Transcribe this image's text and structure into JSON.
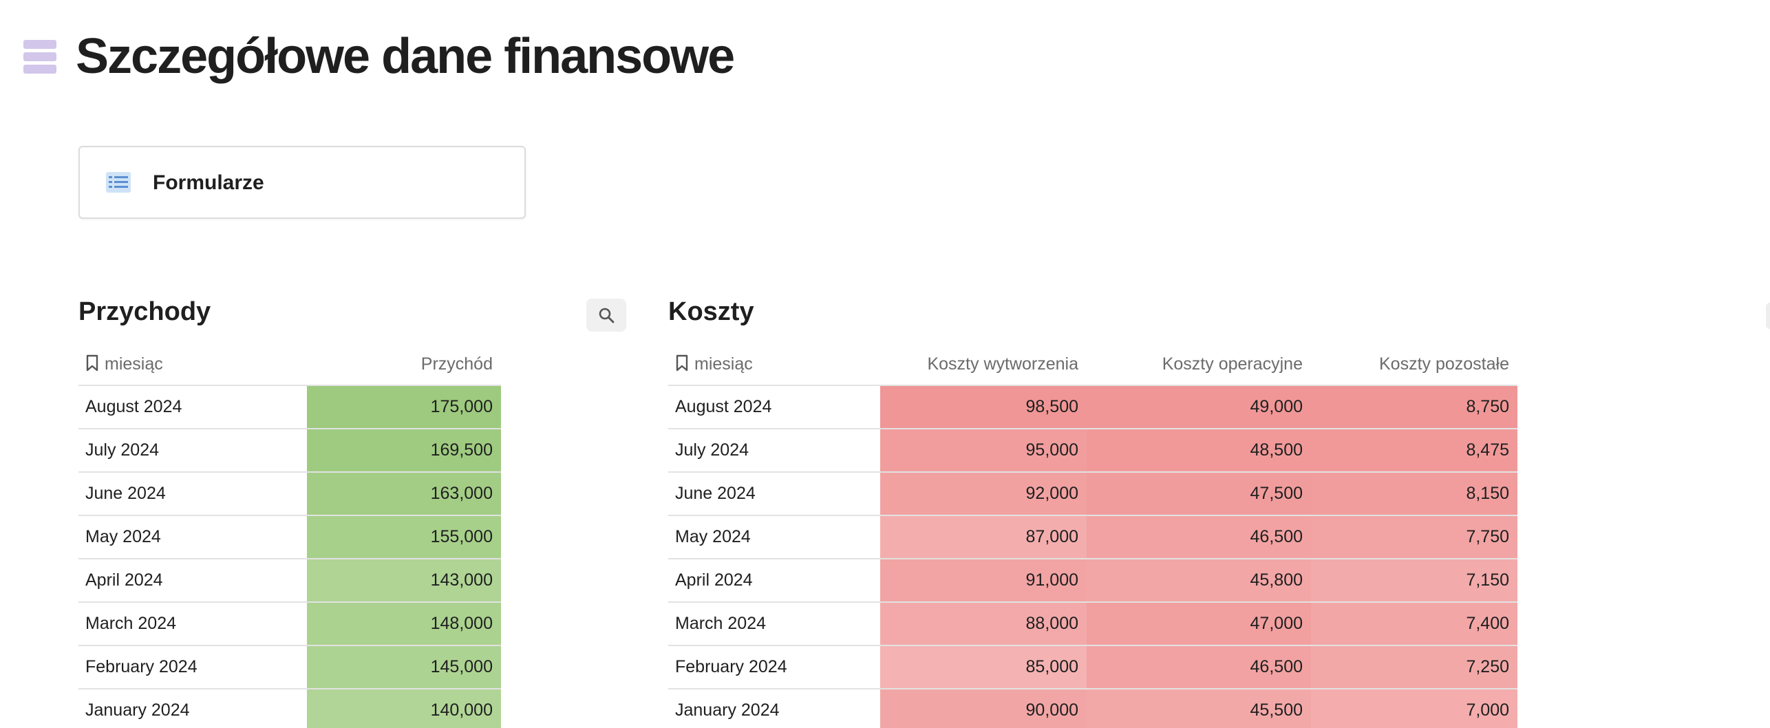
{
  "page": {
    "title": "Szczegółowe dane finansowe",
    "icon": "database-stack-icon",
    "icon_color": "#d2c6ea"
  },
  "link_card": {
    "label": "Formularze",
    "icon": "form-icon"
  },
  "revenue": {
    "title": "Przychody",
    "search_icon": "search-icon",
    "columns": [
      "miesiąc",
      "Przychód"
    ],
    "rows": [
      {
        "month": "August 2024",
        "values": [
          "175,000"
        ],
        "colors": [
          "#9dca7e"
        ]
      },
      {
        "month": "July 2024",
        "values": [
          "169,500"
        ],
        "colors": [
          "#9fcb80"
        ]
      },
      {
        "month": "June 2024",
        "values": [
          "163,000"
        ],
        "colors": [
          "#a3cd85"
        ]
      },
      {
        "month": "May 2024",
        "values": [
          "155,000"
        ],
        "colors": [
          "#a7d08a"
        ]
      },
      {
        "month": "April 2024",
        "values": [
          "143,000"
        ],
        "colors": [
          "#afd494"
        ]
      },
      {
        "month": "March 2024",
        "values": [
          "148,000"
        ],
        "colors": [
          "#abd28f"
        ]
      },
      {
        "month": "February 2024",
        "values": [
          "145,000"
        ],
        "colors": [
          "#add392"
        ]
      },
      {
        "month": "January 2024",
        "values": [
          "140,000"
        ],
        "colors": [
          "#b1d596"
        ]
      }
    ]
  },
  "costs": {
    "title": "Koszty",
    "columns": [
      "miesiąc",
      "Koszty wytworzenia",
      "Koszty operacyjne",
      "Koszty pozostałe"
    ],
    "rows": [
      {
        "month": "August 2024",
        "values": [
          "98,500",
          "49,000",
          "8,750"
        ],
        "colors": [
          "#f09696",
          "#f09696",
          "#f09696"
        ]
      },
      {
        "month": "July 2024",
        "values": [
          "95,000",
          "48,500",
          "8,475"
        ],
        "colors": [
          "#f19d9d",
          "#f19999",
          "#f19999"
        ]
      },
      {
        "month": "June 2024",
        "values": [
          "92,000",
          "47,500",
          "8,150"
        ],
        "colors": [
          "#f2a1a1",
          "#f19c9c",
          "#f19d9d"
        ]
      },
      {
        "month": "May 2024",
        "values": [
          "87,000",
          "46,500",
          "7,750"
        ],
        "colors": [
          "#f4adad",
          "#f2a2a2",
          "#f2a3a3"
        ]
      },
      {
        "month": "April 2024",
        "values": [
          "91,000",
          "45,800",
          "7,150"
        ],
        "colors": [
          "#f2a3a3",
          "#f3a6a6",
          "#f3aaaa"
        ]
      },
      {
        "month": "March 2024",
        "values": [
          "88,000",
          "47,000",
          "7,400"
        ],
        "colors": [
          "#f3a9a9",
          "#f29f9f",
          "#f3a6a6"
        ]
      },
      {
        "month": "February 2024",
        "values": [
          "85,000",
          "46,500",
          "7,250"
        ],
        "colors": [
          "#f5b2b2",
          "#f2a2a2",
          "#f3a8a8"
        ]
      },
      {
        "month": "January 2024",
        "values": [
          "90,000",
          "45,500",
          "7,000"
        ],
        "colors": [
          "#f2a5a5",
          "#f3a8a8",
          "#f4acac"
        ]
      }
    ]
  }
}
